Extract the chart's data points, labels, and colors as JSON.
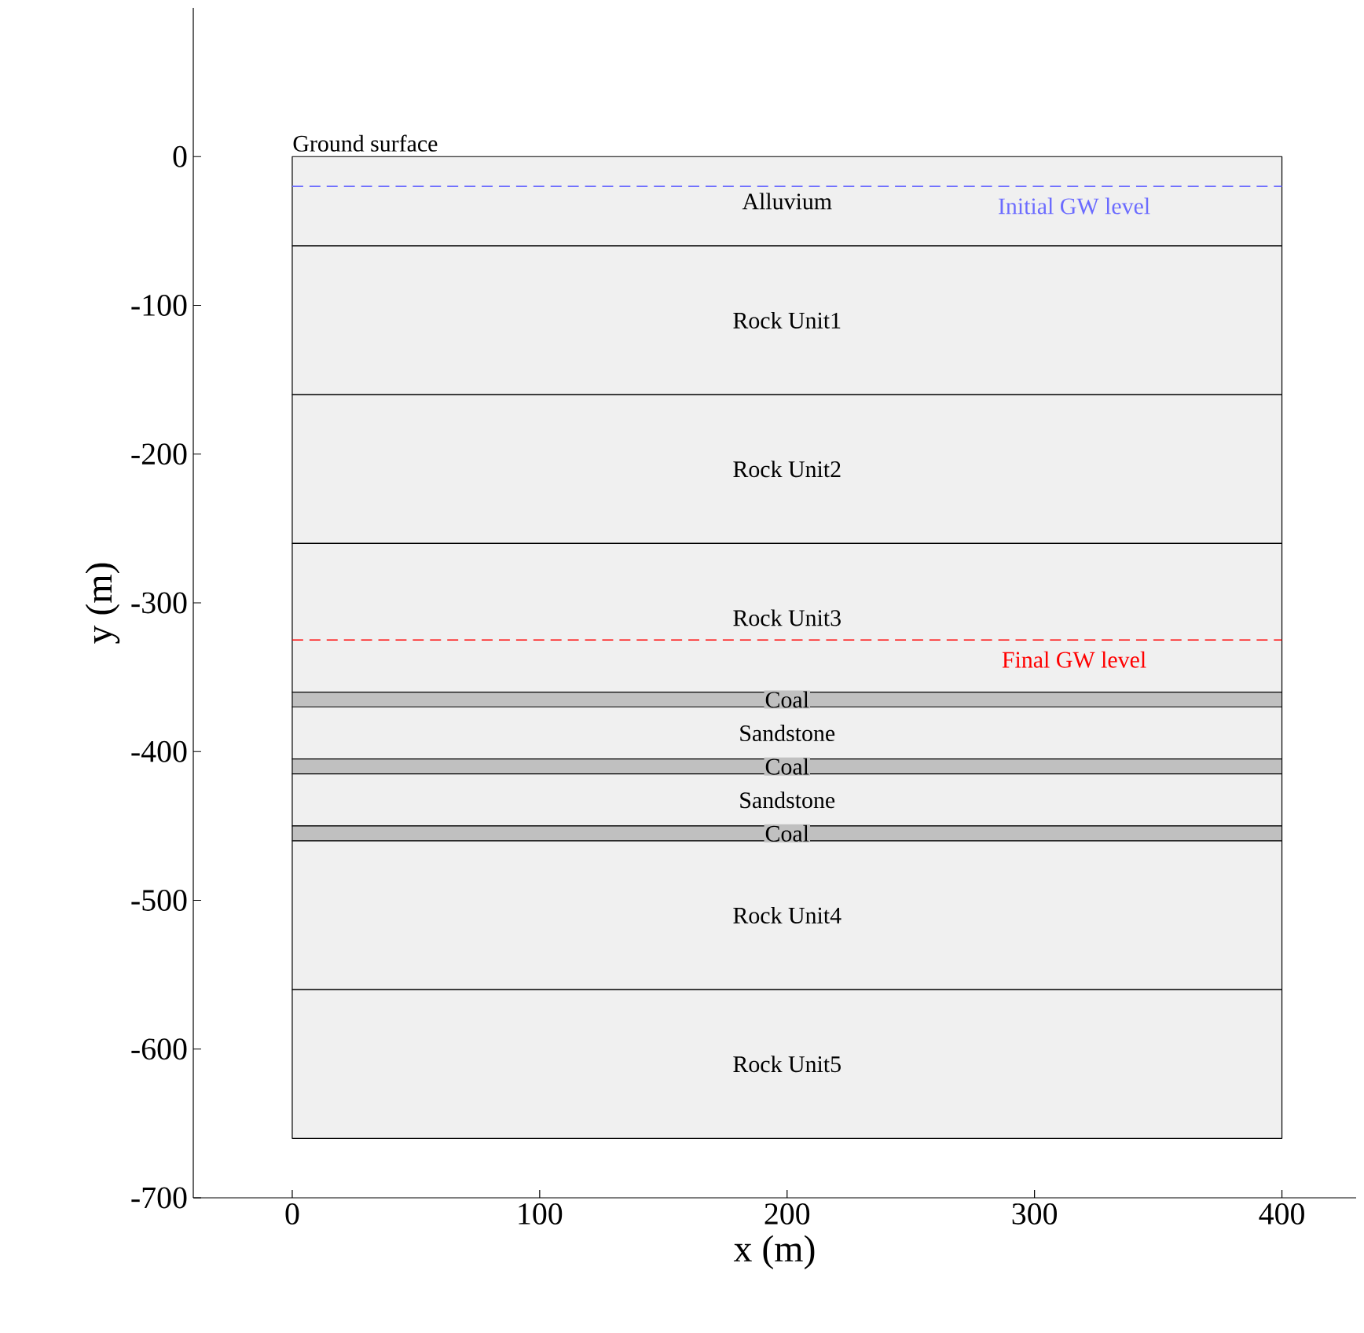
{
  "chart_data": {
    "type": "area",
    "stacked": true,
    "xlabel": "x (m)",
    "ylabel": "y (m)",
    "xlim": [
      -40,
      430
    ],
    "ylim": [
      -700,
      100
    ],
    "xticks": [
      0,
      100,
      200,
      300,
      400
    ],
    "yticks": [
      -700,
      -600,
      -500,
      -400,
      -300,
      -200,
      -100,
      0
    ],
    "x": [
      0,
      400
    ],
    "series": [
      {
        "name": "Alluvium",
        "color": "#f0f0f0",
        "values": [
          -60,
          -60
        ]
      },
      {
        "name": "Rock Unit1",
        "color": "#f0f0f0",
        "values": [
          -100,
          -100
        ]
      },
      {
        "name": "Rock Unit2",
        "color": "#f0f0f0",
        "values": [
          -100,
          -100
        ]
      },
      {
        "name": "Rock Unit3",
        "color": "#f0f0f0",
        "values": [
          -100,
          -100
        ]
      },
      {
        "name": "Coal",
        "color": "#c0c0c0",
        "values": [
          -10,
          -10
        ]
      },
      {
        "name": "Sandstone",
        "color": "#f0f0f0",
        "values": [
          -35,
          -35
        ]
      },
      {
        "name": "Coal",
        "color": "#c0c0c0",
        "values": [
          -10,
          -10
        ]
      },
      {
        "name": "Sandstone",
        "color": "#f0f0f0",
        "values": [
          -35,
          -35
        ]
      },
      {
        "name": "Coal",
        "color": "#c0c0c0",
        "values": [
          -10,
          -10
        ]
      },
      {
        "name": "Rock Unit4",
        "color": "#f0f0f0",
        "values": [
          -100,
          -100
        ]
      },
      {
        "name": "Rock Unit5",
        "color": "#f0f0f0",
        "values": [
          -100,
          -100
        ]
      }
    ],
    "ref_lines": [
      {
        "axis": "y",
        "value": -20,
        "label": "Initial GW level",
        "color": "#6b6bff",
        "line_style": "dashed"
      },
      {
        "axis": "y",
        "value": -325,
        "label": "Final GW level",
        "color": "#ff0000",
        "line_style": "dashed"
      }
    ],
    "annotations": [
      {
        "text": "Ground surface",
        "x": 0,
        "y": 0
      }
    ]
  }
}
